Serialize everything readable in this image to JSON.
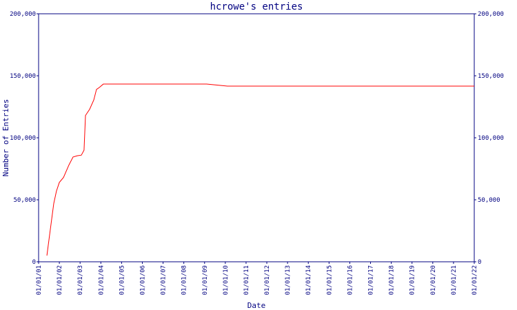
{
  "chart_data": {
    "type": "line",
    "title": "hcrowe's entries",
    "x_label": "Date",
    "y_label": "Number of Entries",
    "series": [
      {
        "name": "entries",
        "color": "#ff0000",
        "x": [
          2001.4,
          2001.47,
          2001.6,
          2001.73,
          2001.86,
          2002.0,
          2002.2,
          2002.46,
          2002.66,
          2002.86,
          2003.06,
          2003.19,
          2003.26,
          2003.46,
          2003.66,
          2003.79,
          2003.92,
          2004.12,
          2009.1,
          2009.77,
          2010.1,
          2011.1,
          2022
        ],
        "values": [
          5000,
          14000,
          30500,
          47000,
          57000,
          64000,
          68000,
          78000,
          84500,
          85500,
          86000,
          90000,
          118000,
          123000,
          130500,
          139000,
          140500,
          143300,
          143300,
          142200,
          141700,
          141700,
          141700
        ]
      }
    ],
    "xlim": [
      2001,
      2022
    ],
    "xticks": [
      {
        "value": 2001,
        "label": "01/01/01"
      },
      {
        "value": 2002,
        "label": "01/01/02"
      },
      {
        "value": 2003,
        "label": "01/01/03"
      },
      {
        "value": 2004,
        "label": "01/01/04"
      },
      {
        "value": 2005,
        "label": "01/01/05"
      },
      {
        "value": 2006,
        "label": "01/01/06"
      },
      {
        "value": 2007,
        "label": "01/01/07"
      },
      {
        "value": 2008,
        "label": "01/01/08"
      },
      {
        "value": 2009,
        "label": "01/01/09"
      },
      {
        "value": 2010,
        "label": "01/01/10"
      },
      {
        "value": 2011,
        "label": "01/01/11"
      },
      {
        "value": 2012,
        "label": "01/01/12"
      },
      {
        "value": 2013,
        "label": "01/01/13"
      },
      {
        "value": 2014,
        "label": "01/01/14"
      },
      {
        "value": 2015,
        "label": "01/01/15"
      },
      {
        "value": 2016,
        "label": "01/01/16"
      },
      {
        "value": 2017,
        "label": "01/01/17"
      },
      {
        "value": 2018,
        "label": "01/01/18"
      },
      {
        "value": 2019,
        "label": "01/01/19"
      },
      {
        "value": 2020,
        "label": "01/01/20"
      },
      {
        "value": 2021,
        "label": "01/01/21"
      },
      {
        "value": 2022,
        "label": "01/01/22"
      }
    ],
    "ylim": [
      0,
      200000
    ],
    "yticks": [
      0,
      {
        "value": 50000,
        "label": "50,000"
      },
      {
        "value": 100000,
        "label": "100,000"
      },
      {
        "value": 150000,
        "label": "150,000"
      },
      {
        "value": 200000,
        "label": "200,000"
      }
    ]
  }
}
